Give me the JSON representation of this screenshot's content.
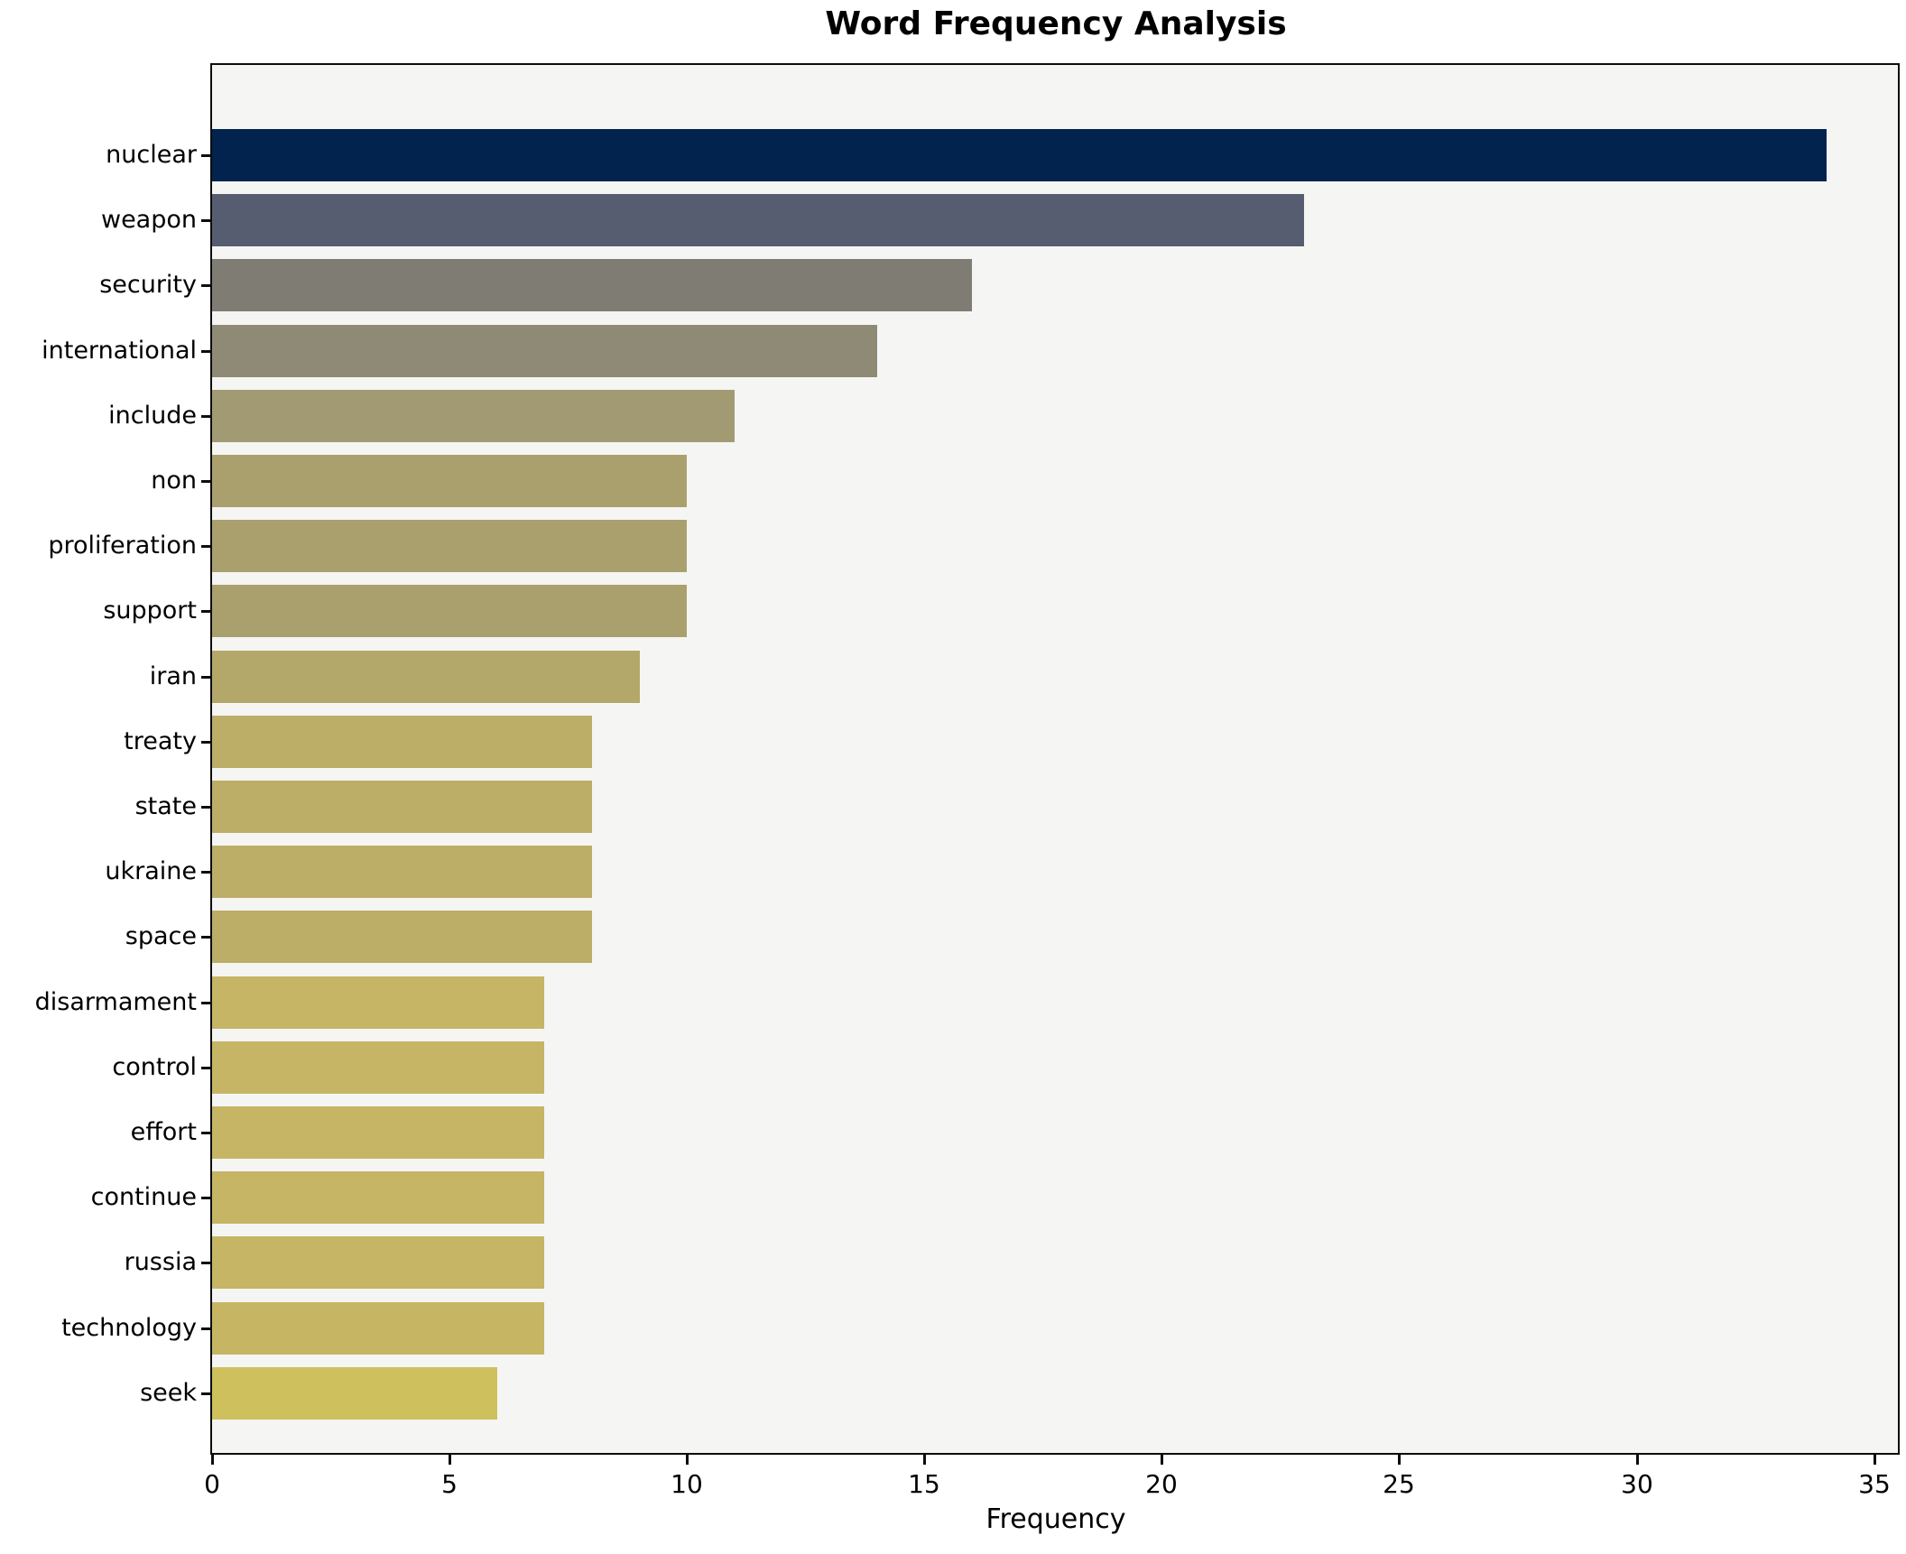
{
  "title": "Word Frequency Analysis",
  "xlabel": "Frequency",
  "chart_data": {
    "type": "bar",
    "orientation": "horizontal",
    "title": "Word Frequency Analysis",
    "xlabel": "Frequency",
    "ylabel": "",
    "categories": [
      "nuclear",
      "weapon",
      "security",
      "international",
      "include",
      "non",
      "proliferation",
      "support",
      "iran",
      "treaty",
      "state",
      "ukraine",
      "space",
      "disarmament",
      "control",
      "effort",
      "continue",
      "russia",
      "technology",
      "seek"
    ],
    "values": [
      34,
      23,
      16,
      14,
      11,
      10,
      10,
      10,
      9,
      8,
      8,
      8,
      8,
      7,
      7,
      7,
      7,
      7,
      7,
      6
    ],
    "bar_colors": [
      "#02234e",
      "#575d71",
      "#7f7c74",
      "#8f8a76",
      "#a29a73",
      "#a9a06e",
      "#a9a06e",
      "#a9a06e",
      "#b3a869",
      "#bcae67",
      "#bcae67",
      "#bcae67",
      "#bcae67",
      "#c5b564",
      "#c5b564",
      "#c5b564",
      "#c5b564",
      "#c5b564",
      "#c6b663",
      "#cfc05e"
    ],
    "xlim": [
      0,
      35.5
    ],
    "xticks": [
      0,
      5,
      10,
      15,
      20,
      25,
      30,
      35
    ],
    "grid": false,
    "legend": "none",
    "plot_bg": "#f5f5f4",
    "figure_bg": "#ffffff",
    "spine_color": "#0d0d0d"
  }
}
